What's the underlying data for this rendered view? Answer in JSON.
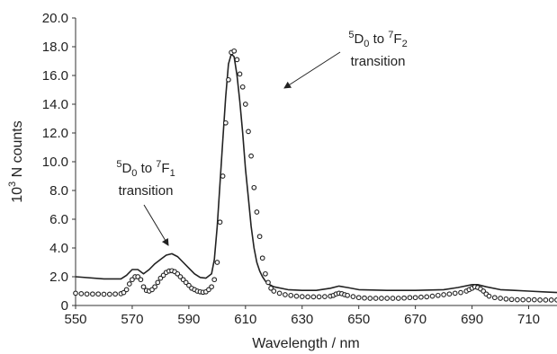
{
  "chart_data": {
    "type": "line",
    "ylabel_parts": {
      "base": "10",
      "exp": "3",
      "rest": " N counts"
    },
    "xlabel": "Wavelength / nm",
    "xlim": [
      550,
      720
    ],
    "ylim": [
      0,
      20
    ],
    "x_ticks": [
      "550",
      "570",
      "590",
      "610",
      "630",
      "650",
      "670",
      "690",
      "710"
    ],
    "y_ticks": [
      "0",
      "2.0",
      "4.0",
      "6.0",
      "8.0",
      "10.0",
      "12.0",
      "14.0",
      "16.0",
      "18.0",
      "20.0"
    ],
    "grid": false,
    "legend": "none",
    "annotations": [
      {
        "id": "a1",
        "line1": {
          "sup1": "5",
          "main1": "D",
          "sub1": "0",
          "mid": " to ",
          "sup2": "7",
          "main2": "F",
          "sub2": "1"
        },
        "line2": "transition",
        "points_to": {
          "x": 584,
          "y": 4.2
        }
      },
      {
        "id": "a2",
        "line1": {
          "sup1": "5",
          "main1": "D",
          "sub1": "0",
          "mid": " to ",
          "sup2": "7",
          "main2": "F",
          "sub2": "2"
        },
        "line2": "transition",
        "points_to": {
          "x": 610,
          "y": 15.0
        }
      }
    ],
    "series": [
      {
        "style": "line",
        "color": "#222222",
        "x": [
          550,
          560,
          566,
          568,
          570,
          572,
          574,
          576,
          578,
          580,
          582,
          584,
          586,
          588,
          590,
          592,
          594,
          596,
          598,
          599,
          600,
          601,
          602,
          603,
          604,
          605,
          606,
          607,
          608,
          609,
          610,
          611,
          612,
          613,
          614,
          615,
          616,
          617,
          618,
          620,
          625,
          630,
          635,
          640,
          643,
          646,
          650,
          660,
          670,
          680,
          685,
          690,
          692,
          695,
          700,
          705,
          710,
          715,
          720
        ],
        "y": [
          2.0,
          1.85,
          1.85,
          2.1,
          2.5,
          2.5,
          2.2,
          2.5,
          2.9,
          3.2,
          3.5,
          3.6,
          3.4,
          3.0,
          2.6,
          2.2,
          1.95,
          1.9,
          2.2,
          3.2,
          5.5,
          8.5,
          11.5,
          14.5,
          16.8,
          17.5,
          17.3,
          16.0,
          14.2,
          12.0,
          9.5,
          7.5,
          5.5,
          4.0,
          3.0,
          2.4,
          2.0,
          1.7,
          1.5,
          1.3,
          1.1,
          1.05,
          1.05,
          1.2,
          1.35,
          1.25,
          1.1,
          1.05,
          1.05,
          1.1,
          1.25,
          1.45,
          1.45,
          1.3,
          1.1,
          1.05,
          1.0,
          0.95,
          0.9
        ]
      },
      {
        "style": "scatter",
        "marker": "circle",
        "color": "#222222",
        "x": [
          550,
          552,
          554,
          556,
          558,
          560,
          562,
          564,
          566,
          567,
          568,
          569,
          570,
          571,
          572,
          573,
          574,
          575,
          576,
          577,
          578,
          579,
          580,
          581,
          582,
          583,
          584,
          585,
          586,
          587,
          588,
          589,
          590,
          591,
          592,
          593,
          594,
          595,
          596,
          597,
          598,
          599,
          600,
          601,
          602,
          603,
          604,
          605,
          606,
          607,
          608,
          609,
          610,
          611,
          612,
          613,
          614,
          615,
          616,
          617,
          618,
          619,
          620,
          622,
          624,
          626,
          628,
          630,
          632,
          634,
          636,
          638,
          640,
          641,
          642,
          643,
          644,
          645,
          646,
          648,
          650,
          652,
          654,
          656,
          658,
          660,
          662,
          664,
          666,
          668,
          670,
          672,
          674,
          676,
          678,
          680,
          682,
          684,
          686,
          688,
          689,
          690,
          691,
          692,
          693,
          694,
          695,
          696,
          698,
          700,
          702,
          704,
          706,
          708,
          710,
          712,
          714,
          716,
          718,
          720
        ],
        "y": [
          0.85,
          0.82,
          0.8,
          0.8,
          0.8,
          0.78,
          0.78,
          0.8,
          0.82,
          0.9,
          1.1,
          1.5,
          1.8,
          2.0,
          2.0,
          1.8,
          1.3,
          1.05,
          1.0,
          1.1,
          1.3,
          1.6,
          1.9,
          2.1,
          2.3,
          2.4,
          2.42,
          2.35,
          2.2,
          2.0,
          1.8,
          1.6,
          1.4,
          1.2,
          1.1,
          1.0,
          0.95,
          0.92,
          0.95,
          1.1,
          1.3,
          1.8,
          3.0,
          5.8,
          9.0,
          12.7,
          15.7,
          17.6,
          17.7,
          17.1,
          16.1,
          15.2,
          14.0,
          12.1,
          10.4,
          8.2,
          6.5,
          4.8,
          3.3,
          2.2,
          1.6,
          1.2,
          1.0,
          0.85,
          0.75,
          0.7,
          0.65,
          0.62,
          0.6,
          0.6,
          0.6,
          0.62,
          0.65,
          0.7,
          0.8,
          0.85,
          0.82,
          0.75,
          0.7,
          0.62,
          0.55,
          0.52,
          0.5,
          0.5,
          0.5,
          0.5,
          0.5,
          0.5,
          0.52,
          0.55,
          0.55,
          0.58,
          0.6,
          0.65,
          0.7,
          0.75,
          0.8,
          0.85,
          0.9,
          1.0,
          1.1,
          1.2,
          1.3,
          1.25,
          1.15,
          1.0,
          0.8,
          0.65,
          0.55,
          0.5,
          0.45,
          0.42,
          0.4,
          0.4,
          0.4,
          0.4,
          0.38,
          0.38,
          0.38,
          0.38
        ]
      }
    ]
  }
}
